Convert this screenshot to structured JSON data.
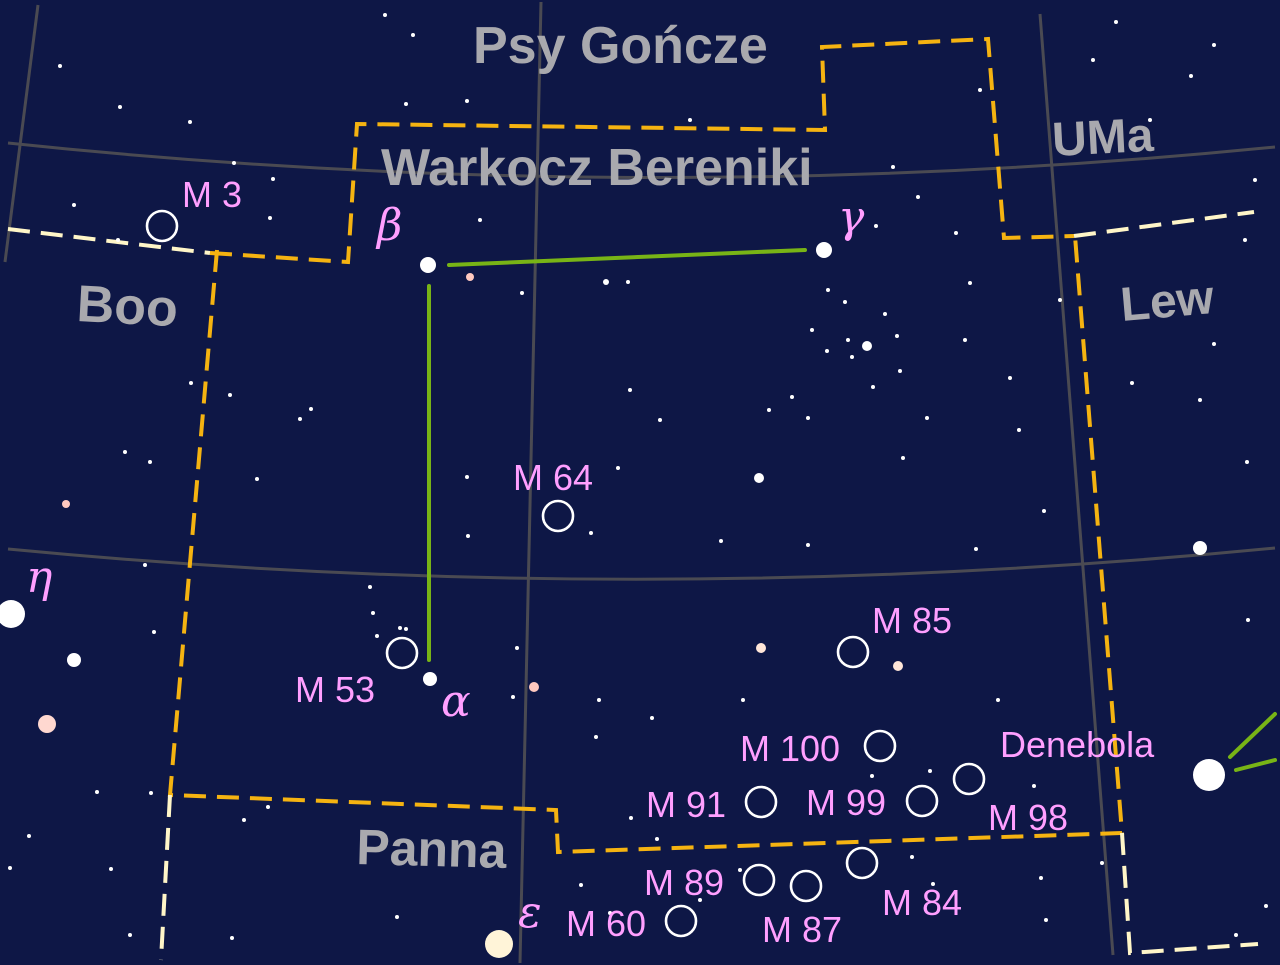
{
  "constellations": {
    "psy_gончze": "Psy Gończe",
    "warkocz": "Warkocz Bereniki",
    "uma": "UMa",
    "boo": "Boo",
    "lew": "Lew",
    "panna": "Panna"
  },
  "greek": {
    "beta": "β",
    "gamma": "γ",
    "alpha": "α",
    "eta": "η",
    "epsilon": "ε"
  },
  "messier": {
    "m3": "M 3",
    "m64": "M 64",
    "m53": "M 53",
    "m85": "M 85",
    "m100": "M 100",
    "m91": "M 91",
    "m99": "M 99",
    "m98": "M 98",
    "m89": "M 89",
    "m87": "M 87",
    "m84": "M 84",
    "m60": "M 60"
  },
  "stars": {
    "denebola": "Denebola"
  },
  "colors": {
    "background": "#0e1746",
    "boundary": "#f5b311",
    "boundary_light": "#fff6c8",
    "constellation_line": "#78b416",
    "label": "#ff9fff",
    "constellation_name": "#a9a9ae"
  }
}
